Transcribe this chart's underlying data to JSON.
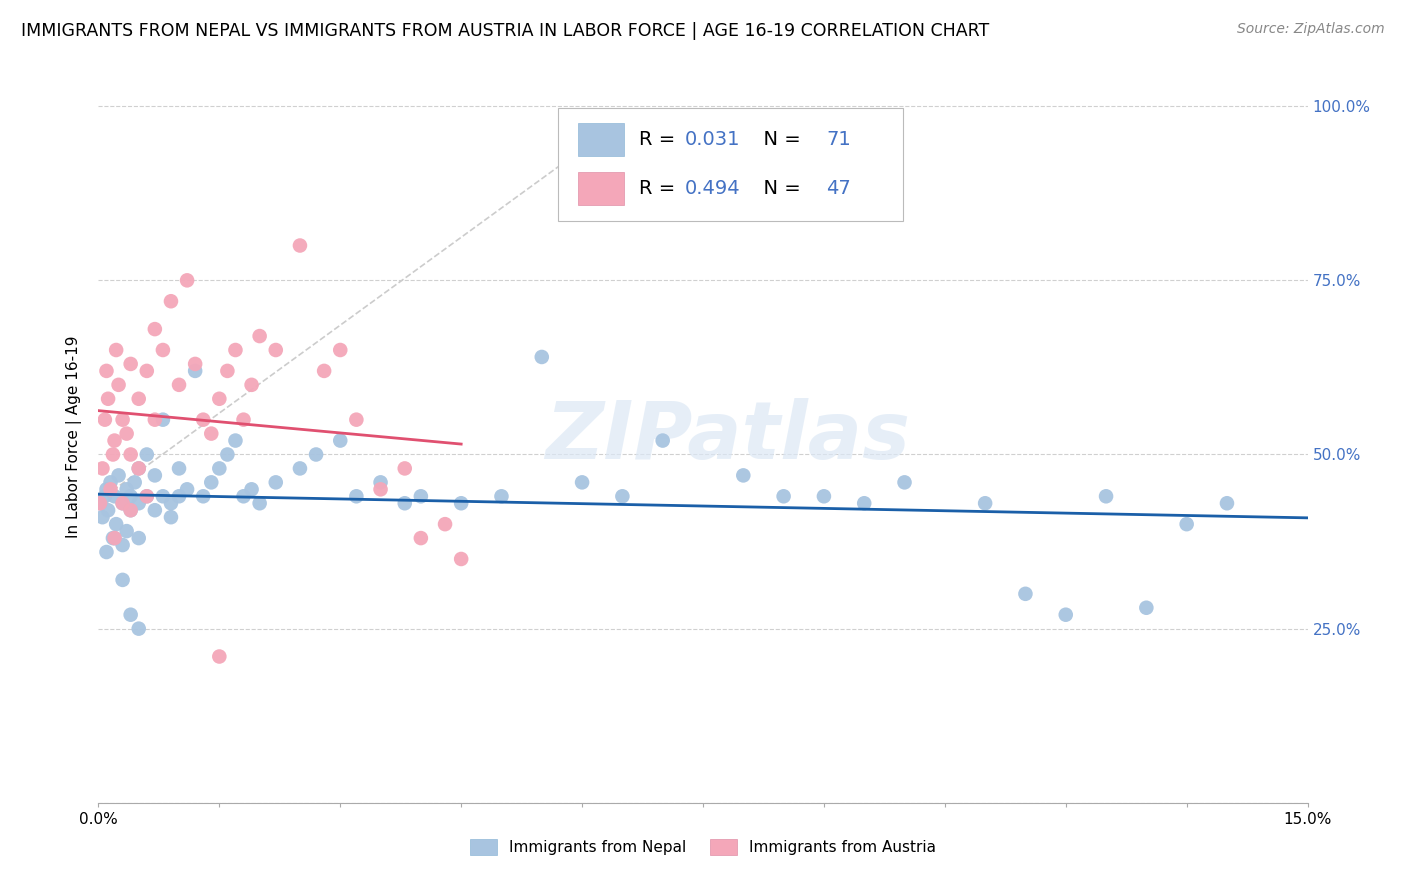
{
  "title": "IMMIGRANTS FROM NEPAL VS IMMIGRANTS FROM AUSTRIA IN LABOR FORCE | AGE 16-19 CORRELATION CHART",
  "source": "Source: ZipAtlas.com",
  "ylabel": "In Labor Force | Age 16-19",
  "xlim": [
    0.0,
    0.15
  ],
  "ylim": [
    0.0,
    1.05
  ],
  "nepal_R": 0.031,
  "nepal_N": 71,
  "austria_R": 0.494,
  "austria_N": 47,
  "nepal_color": "#a8c4e0",
  "austria_color": "#f4a7b9",
  "nepal_line_color": "#1a5fa8",
  "austria_line_color": "#e05070",
  "diagonal_color": "#cccccc",
  "background_color": "#ffffff",
  "grid_color": "#d0d0d0",
  "watermark": "ZIPatlas",
  "legend_nepal_label": "Immigrants from Nepal",
  "legend_austria_label": "Immigrants from Austria",
  "nepal_x": [
    0.0002,
    0.0005,
    0.0008,
    0.001,
    0.0012,
    0.0015,
    0.0018,
    0.002,
    0.0022,
    0.0025,
    0.003,
    0.003,
    0.0035,
    0.0035,
    0.004,
    0.004,
    0.0045,
    0.005,
    0.005,
    0.005,
    0.006,
    0.006,
    0.007,
    0.007,
    0.008,
    0.008,
    0.009,
    0.009,
    0.01,
    0.01,
    0.011,
    0.012,
    0.013,
    0.014,
    0.015,
    0.016,
    0.017,
    0.018,
    0.019,
    0.02,
    0.022,
    0.025,
    0.027,
    0.03,
    0.032,
    0.035,
    0.038,
    0.04,
    0.045,
    0.05,
    0.055,
    0.06,
    0.065,
    0.07,
    0.08,
    0.085,
    0.09,
    0.095,
    0.1,
    0.11,
    0.115,
    0.12,
    0.125,
    0.13,
    0.135,
    0.14,
    0.001,
    0.003,
    0.005,
    0.002,
    0.004
  ],
  "nepal_y": [
    0.43,
    0.41,
    0.44,
    0.45,
    0.42,
    0.46,
    0.38,
    0.44,
    0.4,
    0.47,
    0.43,
    0.37,
    0.45,
    0.39,
    0.44,
    0.42,
    0.46,
    0.43,
    0.48,
    0.38,
    0.5,
    0.44,
    0.42,
    0.47,
    0.55,
    0.44,
    0.43,
    0.41,
    0.44,
    0.48,
    0.45,
    0.62,
    0.44,
    0.46,
    0.48,
    0.5,
    0.52,
    0.44,
    0.45,
    0.43,
    0.46,
    0.48,
    0.5,
    0.52,
    0.44,
    0.46,
    0.43,
    0.44,
    0.43,
    0.44,
    0.64,
    0.46,
    0.44,
    0.52,
    0.47,
    0.44,
    0.44,
    0.43,
    0.46,
    0.43,
    0.3,
    0.27,
    0.44,
    0.28,
    0.4,
    0.43,
    0.36,
    0.32,
    0.25,
    0.38,
    0.27
  ],
  "austria_x": [
    0.0002,
    0.0005,
    0.0008,
    0.001,
    0.0012,
    0.0015,
    0.0018,
    0.002,
    0.0022,
    0.0025,
    0.003,
    0.003,
    0.0035,
    0.004,
    0.004,
    0.005,
    0.005,
    0.006,
    0.007,
    0.007,
    0.008,
    0.009,
    0.01,
    0.011,
    0.012,
    0.013,
    0.014,
    0.015,
    0.016,
    0.017,
    0.018,
    0.019,
    0.02,
    0.022,
    0.025,
    0.028,
    0.03,
    0.032,
    0.035,
    0.038,
    0.04,
    0.043,
    0.045,
    0.002,
    0.004,
    0.006,
    0.015
  ],
  "austria_y": [
    0.43,
    0.48,
    0.55,
    0.62,
    0.58,
    0.45,
    0.5,
    0.52,
    0.65,
    0.6,
    0.55,
    0.43,
    0.53,
    0.63,
    0.5,
    0.58,
    0.48,
    0.62,
    0.55,
    0.68,
    0.65,
    0.72,
    0.6,
    0.75,
    0.63,
    0.55,
    0.53,
    0.58,
    0.62,
    0.65,
    0.55,
    0.6,
    0.67,
    0.65,
    0.8,
    0.62,
    0.65,
    0.55,
    0.45,
    0.48,
    0.38,
    0.4,
    0.35,
    0.38,
    0.42,
    0.44,
    0.21
  ]
}
